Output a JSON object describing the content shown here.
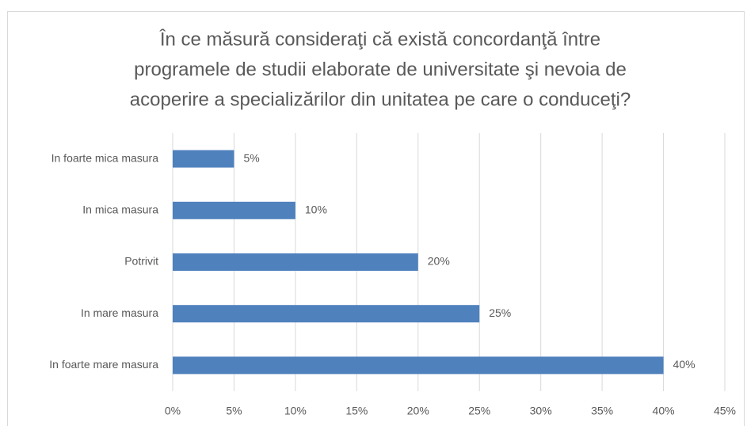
{
  "chart_data": {
    "type": "bar",
    "orientation": "horizontal",
    "title": [
      "În ce măsură consideraţi că există concordanţă între",
      "programele de studii elaborate de universitate şi nevoia de",
      "acoperire a specializărilor din unitatea pe care o conduceţi?"
    ],
    "categories": [
      "In foarte mica masura",
      "In mica masura",
      "Potrivit",
      "In mare masura",
      "In foarte mare masura"
    ],
    "values": [
      5,
      10,
      20,
      25,
      40
    ],
    "value_labels": [
      "5%",
      "10%",
      "20%",
      "25%",
      "40%"
    ],
    "color": "#4f81bd",
    "xlim": [
      0,
      45
    ],
    "xticks": [
      {
        "value": 0,
        "label": "0%"
      },
      {
        "value": 5,
        "label": "5%"
      },
      {
        "value": 10,
        "label": "10%"
      },
      {
        "value": 15,
        "label": "15%"
      },
      {
        "value": 20,
        "label": "20%"
      },
      {
        "value": 25,
        "label": "25%"
      },
      {
        "value": 30,
        "label": "30%"
      },
      {
        "value": 35,
        "label": "35%"
      },
      {
        "value": 40,
        "label": "40%"
      },
      {
        "value": 45,
        "label": "45%"
      }
    ],
    "grid": true
  }
}
